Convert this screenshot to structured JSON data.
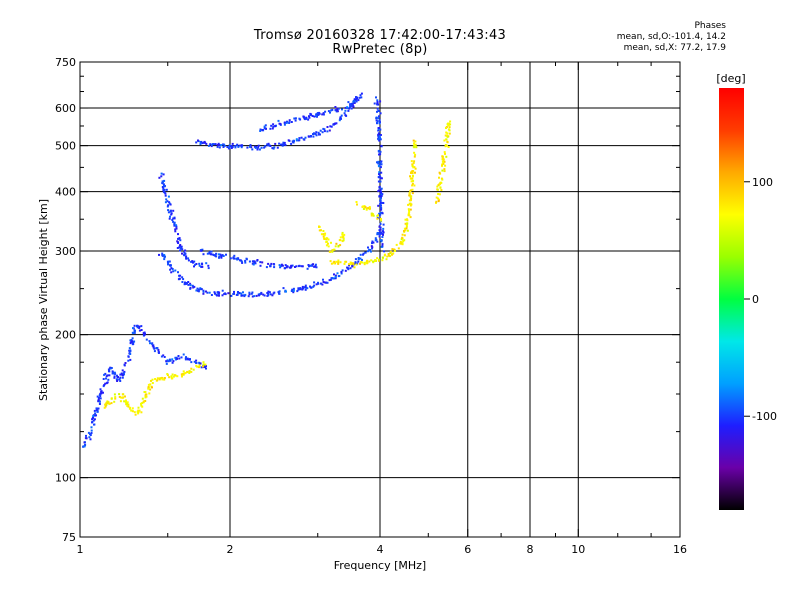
{
  "title": {
    "line1": "Tromsø 20160328 17:42:00-17:43:43",
    "line2": "RwPretec (8p)"
  },
  "phase_legend": {
    "heading": "Phases",
    "line_o": "mean, sd,O:-101.4, 14.2",
    "line_x": "mean, sd,X:  77.2, 17.9"
  },
  "colorbar": {
    "unit_label": "[deg]",
    "range": [
      -180,
      180
    ],
    "ticks": [
      100,
      0,
      -100
    ],
    "tick_labels": [
      "100",
      "0",
      "-100"
    ],
    "colors": [
      "#000000",
      "#6a00a8",
      "#1e1eff",
      "#00a0ff",
      "#00e8e8",
      "#00ff40",
      "#9aff00",
      "#ffff00",
      "#ffaa00",
      "#ff3c00",
      "#ff0000"
    ]
  },
  "chart_data": {
    "type": "scatter",
    "title": "Tromsø 20160328 17:42:00-17:43:43",
    "subtitle": "RwPretec (8p)",
    "xlabel": "Frequency [MHz]",
    "ylabel": "Stationary phase Virtual Height [km]",
    "xscale": "log",
    "yscale": "log",
    "xlim": [
      1,
      16
    ],
    "ylim": [
      75,
      750
    ],
    "x_ticks": [
      1,
      2,
      4,
      6,
      8,
      10,
      16
    ],
    "x_tick_labels": [
      "1",
      "2",
      "4",
      "6",
      "8",
      "10",
      "16"
    ],
    "x_minor_ticks": [
      1.5,
      3,
      5,
      7,
      9,
      12,
      14
    ],
    "x_grid": [
      2,
      4,
      6,
      8,
      10
    ],
    "y_ticks": [
      75,
      100,
      200,
      300,
      400,
      500,
      600,
      750
    ],
    "y_tick_labels": [
      "75",
      "100",
      "200",
      "300",
      "400",
      "500",
      "600",
      "750"
    ],
    "y_minor_ticks": [
      125,
      150,
      175,
      250,
      350,
      450,
      550,
      650,
      700
    ],
    "y_grid": [
      100,
      200,
      300,
      400,
      500,
      600
    ],
    "grid": true,
    "color_variable": "phase [deg]",
    "series": [
      {
        "name": "O",
        "phase_mean": -101.4,
        "phase_sd": 14.2,
        "traces": [
          {
            "x": [
              1.45,
              1.55,
              1.62,
              1.7,
              1.8,
              1.9,
              2.0,
              2.1,
              2.2,
              2.4,
              2.6,
              2.8,
              3.0,
              3.2,
              3.4,
              3.6,
              3.8,
              4.0
            ],
            "y": [
              300,
              270,
              258,
              250,
              246,
              244,
              243,
              243,
              243,
              244,
              247,
              250,
              255,
              262,
              272,
              285,
              300,
              330
            ]
          },
          {
            "x": [
              1.45,
              1.48,
              1.52,
              1.56,
              1.6,
              1.66,
              1.72,
              1.8
            ],
            "y": [
              440,
              400,
              360,
              330,
              300,
              285,
              280,
              278
            ]
          },
          {
            "x": [
              1.7,
              1.8,
              1.9,
              2.0,
              2.2,
              2.4,
              2.6,
              2.8,
              3.0,
              3.2,
              3.4,
              3.6
            ],
            "y": [
              510,
              505,
              500,
              498,
              496,
              498,
              505,
              515,
              530,
              550,
              580,
              630
            ]
          },
          {
            "x": [
              2.3,
              2.6,
              2.9,
              3.2,
              3.5,
              3.7
            ],
            "y": [
              540,
              560,
              575,
              590,
              610,
              640
            ]
          },
          {
            "x": [
              1.75,
              1.85,
              2.0,
              2.2,
              2.4,
              2.6,
              2.8,
              3.0
            ],
            "y": [
              300,
              295,
              290,
              285,
              280,
              278,
              278,
              280
            ]
          },
          {
            "x": [
              3.95,
              3.97,
              4.0,
              4.0,
              4.02,
              4.05
            ],
            "y": [
              630,
              560,
              480,
              400,
              340,
              300
            ]
          },
          {
            "x": [
              1.02,
              1.05,
              1.1,
              1.15,
              1.2,
              1.25,
              1.3,
              1.4,
              1.5,
              1.6,
              1.8
            ],
            "y": [
              115,
              125,
              150,
              170,
              160,
              180,
              210,
              190,
              175,
              180,
              170
            ]
          }
        ]
      },
      {
        "name": "X",
        "phase_mean": 77.2,
        "phase_sd": 17.9,
        "traces": [
          {
            "x": [
              3.2,
              3.4,
              3.6,
              3.8,
              4.0,
              4.2,
              4.4,
              4.5,
              4.6,
              4.65,
              4.7
            ],
            "y": [
              285,
              282,
              282,
              284,
              288,
              295,
              310,
              330,
              370,
              430,
              510
            ]
          },
          {
            "x": [
              3.0,
              3.1,
              3.2,
              3.3,
              3.4
            ],
            "y": [
              340,
              320,
              300,
              310,
              330
            ]
          },
          {
            "x": [
              3.6,
              3.8,
              4.0
            ],
            "y": [
              380,
              365,
              350
            ]
          },
          {
            "x": [
              5.2,
              5.3,
              5.4,
              5.5
            ],
            "y": [
              380,
              420,
              480,
              560
            ]
          },
          {
            "x": [
              1.1,
              1.2,
              1.3,
              1.4,
              1.6,
              1.8
            ],
            "y": [
              140,
              150,
              135,
              160,
              165,
              175
            ]
          }
        ]
      }
    ]
  }
}
